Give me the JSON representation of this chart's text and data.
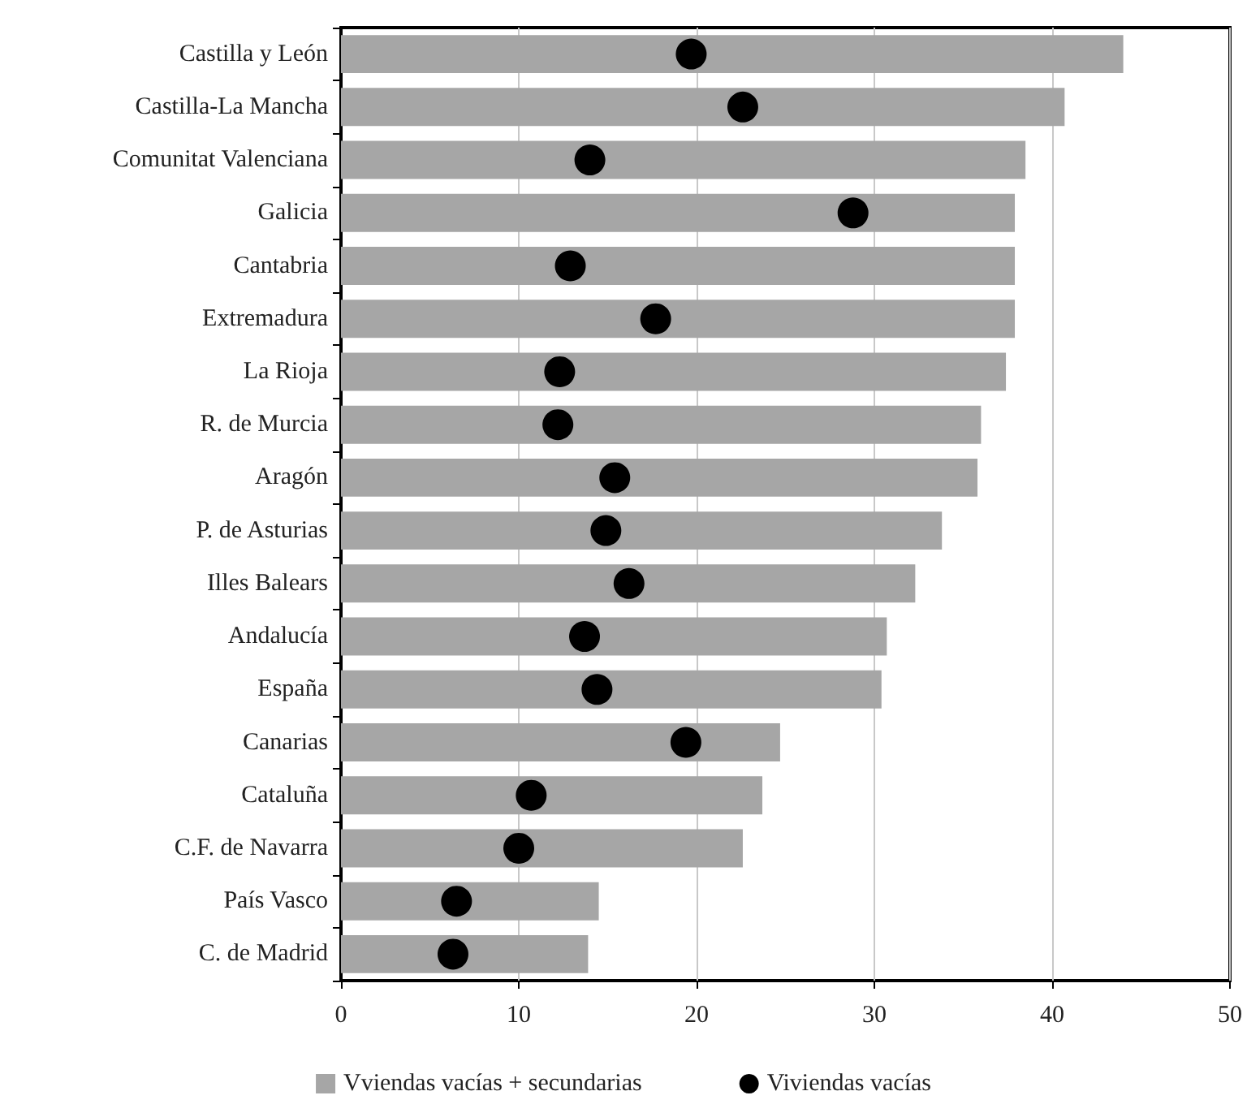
{
  "chart_data": {
    "type": "bar",
    "orientation": "horizontal",
    "categories": [
      "Castilla y León",
      "Castilla-La Mancha",
      "Comunitat Valenciana",
      "Galicia",
      "Cantabria",
      "Extremadura",
      "La Rioja",
      "R. de Murcia",
      "Aragón",
      "P. de Asturias",
      "Illes Balears",
      "Andalucía",
      "España",
      "Canarias",
      "Cataluña",
      "C.F. de Navarra",
      "País Vasco",
      "C. de Madrid"
    ],
    "series": [
      {
        "name": "Vviendas vacías + secundarias",
        "color": "#a6a6a6",
        "values": [
          44.0,
          40.7,
          38.5,
          37.9,
          37.9,
          37.9,
          37.4,
          36.0,
          35.8,
          33.8,
          32.3,
          30.7,
          30.4,
          24.7,
          23.7,
          22.6,
          14.5,
          13.9
        ]
      },
      {
        "name": "Viviendas vacías",
        "type": "scatter",
        "color": "#000000",
        "values": [
          19.7,
          22.6,
          14.0,
          28.8,
          12.9,
          17.7,
          12.3,
          12.2,
          15.4,
          14.9,
          16.2,
          13.7,
          14.4,
          19.4,
          10.7,
          10.0,
          6.5,
          6.3
        ]
      }
    ],
    "xlim": [
      0,
      50
    ],
    "xticks": [
      0,
      10,
      20,
      30,
      40,
      50
    ],
    "grid": "x",
    "legend": "bottom",
    "marker": "circle"
  }
}
